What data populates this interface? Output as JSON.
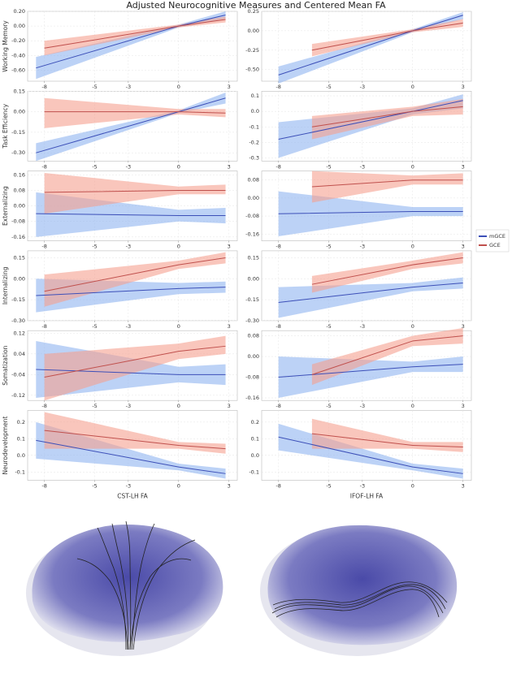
{
  "title": "Adjusted Neurocognitive Measures and Centered Mean FA",
  "chart_data": [
    {
      "type": "line",
      "ylabel": "Working Memory",
      "xlim": [
        -9,
        3.5
      ],
      "xticks": [
        -8,
        -5,
        -3,
        0,
        3
      ],
      "ylim": [
        -0.75,
        0.2
      ],
      "yticks": [
        {
          "value": 0.2,
          "label": "0.20"
        },
        {
          "value": 0,
          "label": "0.00"
        },
        {
          "value": -0.2,
          "label": "-0.20"
        },
        {
          "value": -0.4,
          "label": "-0.40"
        },
        {
          "value": -0.6,
          "label": "-0.60"
        }
      ],
      "series": [
        {
          "name": "mGCE",
          "color": "#3c4fb8",
          "band_color": "#8fb4f0",
          "x": [
            -8.5,
            0,
            2.8
          ],
          "values": [
            -0.57,
            0,
            0.15
          ],
          "lower": [
            -0.72,
            -0.02,
            0.1
          ],
          "upper": [
            -0.42,
            0.02,
            0.2
          ]
        },
        {
          "name": "GCE",
          "color": "#c0504d",
          "band_color": "#f5a090",
          "x": [
            -8,
            0,
            2.8
          ],
          "values": [
            -0.3,
            0,
            0.09
          ],
          "lower": [
            -0.4,
            -0.02,
            0.05
          ],
          "upper": [
            -0.2,
            0.02,
            0.13
          ]
        }
      ]
    },
    {
      "type": "line",
      "xlim": [
        -9,
        3.5
      ],
      "xticks": [
        -8,
        -5,
        -3,
        0,
        3
      ],
      "ylim": [
        -0.65,
        0.25
      ],
      "yticks": [
        {
          "value": 0.25,
          "label": "0.25"
        },
        {
          "value": 0,
          "label": "0.00"
        },
        {
          "value": -0.25,
          "label": "-0.25"
        },
        {
          "value": -0.5,
          "label": "-0.50"
        }
      ],
      "series": [
        {
          "name": "mGCE",
          "color": "#3c4fb8",
          "band_color": "#8fb4f0",
          "x": [
            -8,
            0,
            3
          ],
          "values": [
            -0.57,
            0,
            0.2
          ],
          "lower": [
            -0.68,
            -0.02,
            0.15
          ],
          "upper": [
            -0.46,
            0.02,
            0.24
          ]
        },
        {
          "name": "GCE",
          "color": "#c0504d",
          "band_color": "#f5a090",
          "x": [
            -6,
            0,
            3
          ],
          "values": [
            -0.25,
            0,
            0.1
          ],
          "lower": [
            -0.33,
            -0.02,
            0.05
          ],
          "upper": [
            -0.17,
            0.02,
            0.15
          ]
        }
      ]
    },
    {
      "type": "line",
      "ylabel": "Task Efficiency",
      "xlim": [
        -9,
        3.5
      ],
      "xticks": [
        -8,
        -5,
        -3,
        0,
        3
      ],
      "ylim": [
        -0.36,
        0.15
      ],
      "yticks": [
        {
          "value": 0.15,
          "label": "0.15"
        },
        {
          "value": 0,
          "label": "0.00"
        },
        {
          "value": -0.15,
          "label": "-0.15"
        },
        {
          "value": -0.3,
          "label": "-0.30"
        }
      ],
      "series": [
        {
          "name": "mGCE",
          "color": "#3c4fb8",
          "band_color": "#8fb4f0",
          "x": [
            -8.5,
            0,
            2.8
          ],
          "values": [
            -0.3,
            0,
            0.1
          ],
          "lower": [
            -0.36,
            -0.01,
            0.06
          ],
          "upper": [
            -0.23,
            0.01,
            0.14
          ]
        },
        {
          "name": "GCE",
          "color": "#c0504d",
          "band_color": "#f5a090",
          "x": [
            -8,
            0,
            2.8
          ],
          "values": [
            0,
            0,
            -0.01
          ],
          "lower": [
            -0.12,
            -0.02,
            -0.04
          ],
          "upper": [
            0.1,
            0.02,
            0.02
          ]
        }
      ]
    },
    {
      "type": "line",
      "xlim": [
        -9,
        3.5
      ],
      "xticks": [
        -8,
        -5,
        -3,
        0,
        3
      ],
      "ylim": [
        -0.32,
        0.13
      ],
      "yticks": [
        0.1,
        {
          "value": 0,
          "label": "0.0"
        },
        -0.1,
        -0.2,
        -0.3
      ],
      "series": [
        {
          "name": "mGCE",
          "color": "#3c4fb8",
          "band_color": "#8fb4f0",
          "x": [
            -8,
            0,
            3
          ],
          "values": [
            -0.18,
            0,
            0.07
          ],
          "lower": [
            -0.3,
            -0.02,
            0.02
          ],
          "upper": [
            -0.07,
            0.02,
            0.11
          ]
        },
        {
          "name": "GCE",
          "color": "#c0504d",
          "band_color": "#f5a090",
          "x": [
            -6,
            0,
            3
          ],
          "values": [
            -0.1,
            0,
            0.03
          ],
          "lower": [
            -0.18,
            -0.03,
            -0.02
          ],
          "upper": [
            -0.03,
            0.03,
            0.08
          ]
        }
      ]
    },
    {
      "type": "line",
      "ylabel": "Externalizing",
      "xlim": [
        -9,
        3.5
      ],
      "xticks": [
        -8,
        -5,
        -3,
        0,
        3
      ],
      "ylim": [
        -0.18,
        0.18
      ],
      "yticks": [
        0.16,
        0.08,
        {
          "value": 0,
          "label": "0.00"
        },
        -0.08,
        -0.16
      ],
      "series": [
        {
          "name": "mGCE",
          "color": "#3c4fb8",
          "band_color": "#8fb4f0",
          "x": [
            -8.5,
            0,
            2.8
          ],
          "values": [
            -0.04,
            -0.05,
            -0.05
          ],
          "lower": [
            -0.16,
            -0.08,
            -0.09
          ],
          "upper": [
            0.07,
            -0.02,
            -0.01
          ]
        },
        {
          "name": "GCE",
          "color": "#c0504d",
          "band_color": "#f5a090",
          "x": [
            -8,
            0,
            2.8
          ],
          "values": [
            0.07,
            0.08,
            0.08
          ],
          "lower": [
            -0.04,
            0.06,
            0.06
          ],
          "upper": [
            0.17,
            0.1,
            0.11
          ]
        }
      ]
    },
    {
      "type": "line",
      "xlim": [
        -9,
        3.5
      ],
      "xticks": [
        -8,
        -5,
        -3,
        0,
        3
      ],
      "ylim": [
        -0.19,
        0.12
      ],
      "yticks": [
        0.08,
        {
          "value": 0,
          "label": "0.00"
        },
        -0.08,
        -0.16
      ],
      "series": [
        {
          "name": "mGCE",
          "color": "#3c4fb8",
          "band_color": "#8fb4f0",
          "x": [
            -8,
            0,
            3
          ],
          "values": [
            -0.07,
            -0.06,
            -0.06
          ],
          "lower": [
            -0.17,
            -0.08,
            -0.08
          ],
          "upper": [
            0.03,
            -0.04,
            -0.04
          ]
        },
        {
          "name": "GCE",
          "color": "#c0504d",
          "band_color": "#f5a090",
          "x": [
            -6,
            0,
            3
          ],
          "values": [
            0.05,
            0.08,
            0.08
          ],
          "lower": [
            -0.02,
            0.06,
            0.06
          ],
          "upper": [
            0.12,
            0.1,
            0.11
          ]
        }
      ]
    },
    {
      "type": "line",
      "ylabel": "Internalizing",
      "xlim": [
        -9,
        3.5
      ],
      "xticks": [
        -8,
        -5,
        -3,
        0,
        3
      ],
      "ylim": [
        -0.3,
        0.2
      ],
      "yticks": [
        0.15,
        {
          "value": 0,
          "label": "0.00"
        },
        -0.15,
        {
          "value": -0.3,
          "label": "-0.30"
        }
      ],
      "series": [
        {
          "name": "mGCE",
          "color": "#3c4fb8",
          "band_color": "#8fb4f0",
          "x": [
            -8.5,
            0,
            2.8
          ],
          "values": [
            -0.12,
            -0.07,
            -0.06
          ],
          "lower": [
            -0.24,
            -0.11,
            -0.1
          ],
          "upper": [
            0,
            -0.03,
            -0.02
          ]
        },
        {
          "name": "GCE",
          "color": "#c0504d",
          "band_color": "#f5a090",
          "x": [
            -8,
            0,
            2.8
          ],
          "values": [
            -0.09,
            0.1,
            0.15
          ],
          "lower": [
            -0.2,
            0.07,
            0.11
          ],
          "upper": [
            0.03,
            0.13,
            0.19
          ]
        }
      ]
    },
    {
      "type": "line",
      "xlim": [
        -9,
        3.5
      ],
      "xticks": [
        -8,
        -5,
        -3,
        0,
        3
      ],
      "ylim": [
        -0.3,
        0.2
      ],
      "yticks": [
        0.15,
        {
          "value": 0,
          "label": "0.00"
        },
        -0.15,
        {
          "value": -0.3,
          "label": "-0.30"
        }
      ],
      "series": [
        {
          "name": "mGCE",
          "color": "#3c4fb8",
          "band_color": "#8fb4f0",
          "x": [
            -8,
            0,
            3
          ],
          "values": [
            -0.17,
            -0.06,
            -0.03
          ],
          "lower": [
            -0.28,
            -0.09,
            -0.07
          ],
          "upper": [
            -0.06,
            -0.03,
            0.01
          ]
        },
        {
          "name": "GCE",
          "color": "#c0504d",
          "band_color": "#f5a090",
          "x": [
            -6,
            0,
            3
          ],
          "values": [
            -0.04,
            0.1,
            0.15
          ],
          "lower": [
            -0.1,
            0.07,
            0.11
          ],
          "upper": [
            0.02,
            0.13,
            0.19
          ]
        }
      ]
    },
    {
      "type": "line",
      "ylabel": "Somatization",
      "xlim": [
        -9,
        3.5
      ],
      "xticks": [
        -8,
        -5,
        -3,
        0,
        3
      ],
      "ylim": [
        -0.14,
        0.13
      ],
      "yticks": [
        0.12,
        0.04,
        -0.04,
        -0.12
      ],
      "series": [
        {
          "name": "mGCE",
          "color": "#3c4fb8",
          "band_color": "#8fb4f0",
          "x": [
            -8.5,
            0,
            2.8
          ],
          "values": [
            -0.02,
            -0.04,
            -0.04
          ],
          "lower": [
            -0.13,
            -0.07,
            -0.08
          ],
          "upper": [
            0.09,
            -0.01,
            0
          ]
        },
        {
          "name": "GCE",
          "color": "#c0504d",
          "band_color": "#f5a090",
          "x": [
            -8,
            0,
            2.8
          ],
          "values": [
            -0.05,
            0.05,
            0.07
          ],
          "lower": [
            -0.14,
            0.02,
            0.04
          ],
          "upper": [
            0.04,
            0.08,
            0.11
          ]
        }
      ]
    },
    {
      "type": "line",
      "xlim": [
        -9,
        3.5
      ],
      "xticks": [
        -8,
        -5,
        -3,
        0,
        3
      ],
      "ylim": [
        -0.17,
        0.1
      ],
      "yticks": [
        0.08,
        {
          "value": 0,
          "label": "0.00"
        },
        -0.08,
        -0.16
      ],
      "series": [
        {
          "name": "mGCE",
          "color": "#3c4fb8",
          "band_color": "#8fb4f0",
          "x": [
            -8,
            0,
            3
          ],
          "values": [
            -0.08,
            -0.04,
            -0.03
          ],
          "lower": [
            -0.16,
            -0.06,
            -0.06
          ],
          "upper": [
            0,
            -0.02,
            0
          ]
        },
        {
          "name": "GCE",
          "color": "#c0504d",
          "band_color": "#f5a090",
          "x": [
            -6,
            0,
            3
          ],
          "values": [
            -0.07,
            0.06,
            0.08
          ],
          "lower": [
            -0.11,
            0.04,
            0.05
          ],
          "upper": [
            -0.03,
            0.08,
            0.11
          ]
        }
      ]
    },
    {
      "type": "line",
      "ylabel": "Neurodevelopment",
      "xlabel": "CST-LH FA",
      "xlim": [
        -9,
        3.5
      ],
      "xticks": [
        -8,
        -5,
        -3,
        0,
        3
      ],
      "ylim": [
        -0.15,
        0.27
      ],
      "yticks": [
        0.2,
        0.1,
        {
          "value": 0,
          "label": "0.0"
        },
        -0.1
      ],
      "series": [
        {
          "name": "mGCE",
          "color": "#3c4fb8",
          "band_color": "#8fb4f0",
          "x": [
            -8.5,
            0,
            2.8
          ],
          "values": [
            0.09,
            -0.07,
            -0.11
          ],
          "lower": [
            -0.02,
            -0.09,
            -0.14
          ],
          "upper": [
            0.2,
            -0.05,
            -0.08
          ]
        },
        {
          "name": "GCE",
          "color": "#c0504d",
          "band_color": "#f5a090",
          "x": [
            -8,
            0,
            2.8
          ],
          "values": [
            0.15,
            0.06,
            0.04
          ],
          "lower": [
            0.04,
            0.04,
            0.01
          ],
          "upper": [
            0.26,
            0.08,
            0.07
          ]
        }
      ]
    },
    {
      "type": "line",
      "xlabel": "IFOF-LH FA",
      "xlim": [
        -9,
        3.5
      ],
      "xticks": [
        -8,
        -5,
        -3,
        0,
        3
      ],
      "ylim": [
        -0.15,
        0.27
      ],
      "yticks": [
        0.2,
        0.1,
        {
          "value": 0,
          "label": "0.0"
        },
        -0.1
      ],
      "series": [
        {
          "name": "mGCE",
          "color": "#3c4fb8",
          "band_color": "#8fb4f0",
          "x": [
            -8,
            0,
            3
          ],
          "values": [
            0.11,
            -0.07,
            -0.11
          ],
          "lower": [
            0.03,
            -0.09,
            -0.14
          ],
          "upper": [
            0.19,
            -0.05,
            -0.08
          ]
        },
        {
          "name": "GCE",
          "color": "#c0504d",
          "band_color": "#f5a090",
          "x": [
            -6,
            0,
            3
          ],
          "values": [
            0.13,
            0.06,
            0.05
          ],
          "lower": [
            0.04,
            0.04,
            0.02
          ],
          "upper": [
            0.22,
            0.08,
            0.08
          ]
        }
      ]
    }
  ]
}
